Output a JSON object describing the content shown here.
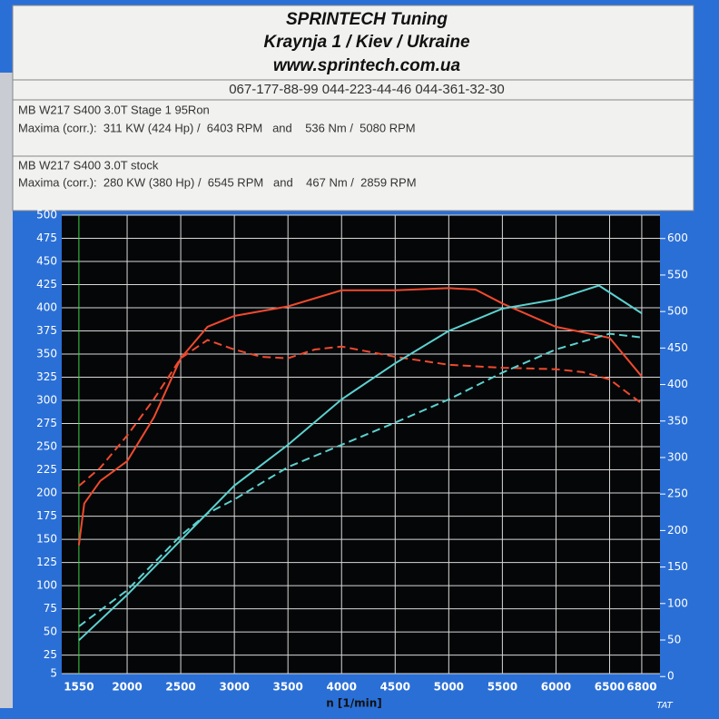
{
  "header": {
    "title": "SPRINTECH Tuning",
    "address": "Kraynja 1 / Kiev / Ukraine",
    "website": "www.sprintech.com.ua",
    "phones": "067-177-88-99 044-223-44-46 044-361-32-30"
  },
  "runs": [
    {
      "name": "MB W217 S400 3.0T Stage 1 95Ron",
      "maxima": "Maxima (corr.):  311 KW (424 Hp) /  6403 RPM   and    536 Nm /  5080 RPM"
    },
    {
      "name": "MB W217 S400 3.0T stock",
      "maxima": "Maxima (corr.):  280 KW (380 Hp) /  6545 RPM   and    467 Nm /  2859 RPM"
    }
  ],
  "chart_data": {
    "type": "line",
    "x_label": "n [1/min]",
    "footer": "TAT",
    "xlim": [
      1390,
      6970
    ],
    "xticks": [
      1550,
      2000,
      2500,
      3000,
      3500,
      4000,
      4500,
      5000,
      5500,
      6000,
      6500,
      6800
    ],
    "ylim": [
      5,
      500
    ],
    "yticks": [
      5,
      25,
      50,
      75,
      100,
      125,
      150,
      175,
      200,
      225,
      250,
      275,
      300,
      325,
      350,
      375,
      400,
      425,
      450,
      475,
      500
    ],
    "y2lim": [
      4,
      632
    ],
    "y2ticks": [
      0,
      50,
      100,
      150,
      200,
      250,
      300,
      350,
      400,
      450,
      500,
      550,
      600
    ],
    "grid": true,
    "series": [
      {
        "color": "#ef4a2e",
        "dash": false,
        "axis": "y2",
        "x": [
          1550,
          1600,
          1750,
          2000,
          2250,
          2500,
          2750,
          3000,
          3500,
          4000,
          4500,
          5000,
          5250,
          5500,
          6000,
          6500,
          6800
        ],
        "values": [
          180,
          237,
          268,
          295,
          355,
          436,
          479,
          494,
          507,
          529,
          529,
          532,
          530,
          511,
          479,
          464,
          411
        ]
      },
      {
        "color": "#ef4a2e",
        "dash": true,
        "axis": "y2",
        "x": [
          1550,
          1750,
          2000,
          2250,
          2500,
          2750,
          3000,
          3250,
          3500,
          3750,
          4000,
          4500,
          5000,
          5500,
          6000,
          6250,
          6500,
          6800
        ],
        "values": [
          261,
          286,
          330,
          380,
          436,
          461,
          448,
          438,
          436,
          448,
          452,
          438,
          427,
          423,
          421,
          417,
          407,
          374
        ]
      },
      {
        "color": "#5cd2d0",
        "dash": false,
        "axis": "y",
        "x": [
          1550,
          2000,
          2500,
          3000,
          3500,
          4000,
          4500,
          5000,
          5500,
          6000,
          6400,
          6800
        ],
        "values": [
          41,
          90,
          149,
          208,
          252,
          301,
          340,
          375,
          399,
          409,
          424,
          394
        ]
      },
      {
        "color": "#5cd2d0",
        "dash": true,
        "axis": "y",
        "x": [
          1550,
          2000,
          2500,
          2750,
          3000,
          3500,
          4000,
          4500,
          5000,
          5500,
          6000,
          6500,
          6800
        ],
        "values": [
          56,
          95,
          154,
          178,
          193,
          228,
          252,
          276,
          301,
          330,
          355,
          372,
          368
        ]
      }
    ]
  }
}
